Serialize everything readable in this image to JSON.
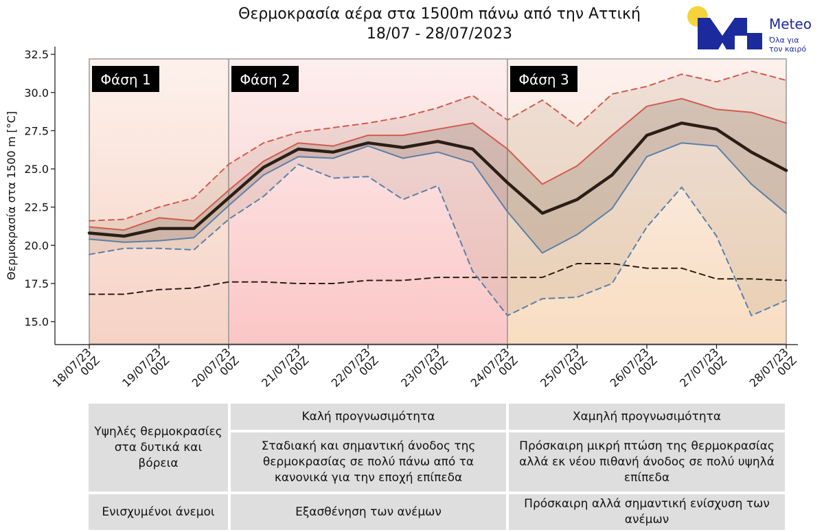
{
  "chart_data": {
    "type": "line",
    "title": "Θερμοκρασία αέρα στα 1500m πάνω από την Αττική",
    "subtitle": "18/07 - 28/07/2023",
    "ylabel": "Θερμοκρασία στα 1500 m [°C]",
    "xlabel": "",
    "ylim": [
      13.5,
      33.0
    ],
    "yticks": [
      "15.0",
      "17.5",
      "20.0",
      "22.5",
      "25.0",
      "27.5",
      "30.0",
      "32.5"
    ],
    "grid": false,
    "x": [
      0,
      0.5,
      1,
      1.5,
      2,
      2.5,
      3,
      3.5,
      4,
      4.5,
      5,
      5.5,
      6,
      6.5,
      7,
      7.5,
      8,
      8.5,
      9,
      9.5,
      10
    ],
    "xtick_labels": [
      {
        "date": "18/07/23",
        "hour": "00Z"
      },
      {
        "date": "19/07/23",
        "hour": "00Z"
      },
      {
        "date": "20/07/23",
        "hour": "00Z"
      },
      {
        "date": "21/07/23",
        "hour": "00Z"
      },
      {
        "date": "22/07/23",
        "hour": "00Z"
      },
      {
        "date": "23/07/23",
        "hour": "00Z"
      },
      {
        "date": "24/07/23",
        "hour": "00Z"
      },
      {
        "date": "25/07/23",
        "hour": "00Z"
      },
      {
        "date": "26/07/23",
        "hour": "00Z"
      },
      {
        "date": "27/07/23",
        "hour": "00Z"
      },
      {
        "date": "28/07/23",
        "hour": "00Z"
      }
    ],
    "series": [
      {
        "key": "max",
        "style": "dashed",
        "color": "#d25a4e",
        "values": [
          21.6,
          21.7,
          22.5,
          23.1,
          25.3,
          26.7,
          27.4,
          27.7,
          28.0,
          28.4,
          29.0,
          29.8,
          28.2,
          29.5,
          27.8,
          29.9,
          30.4,
          31.2,
          30.7,
          31.4,
          30.8
        ]
      },
      {
        "key": "p75",
        "style": "solid",
        "color": "#d25a4e",
        "values": [
          21.2,
          21.0,
          21.8,
          21.6,
          23.6,
          25.5,
          26.7,
          26.5,
          27.2,
          27.2,
          27.6,
          28.0,
          26.3,
          24.0,
          25.2,
          27.2,
          29.1,
          29.6,
          28.9,
          28.7,
          28.0
        ]
      },
      {
        "key": "mean",
        "style": "solid",
        "color": "#2b1e16",
        "values": [
          20.8,
          20.6,
          21.1,
          21.1,
          23.1,
          25.1,
          26.3,
          26.1,
          26.7,
          26.4,
          26.8,
          26.3,
          24.1,
          22.1,
          23.0,
          24.6,
          27.2,
          28.0,
          27.6,
          26.1,
          24.9
        ]
      },
      {
        "key": "p25",
        "style": "solid",
        "color": "#5b7fa8",
        "values": [
          20.4,
          20.2,
          20.3,
          20.5,
          22.6,
          24.6,
          25.8,
          25.7,
          26.5,
          25.7,
          26.1,
          25.4,
          22.2,
          19.5,
          20.7,
          22.4,
          25.8,
          26.7,
          26.5,
          24.0,
          22.1
        ]
      },
      {
        "key": "min",
        "style": "dashed",
        "color": "#5b7fa8",
        "values": [
          19.4,
          19.8,
          19.8,
          19.7,
          21.7,
          23.2,
          25.3,
          24.4,
          24.5,
          23.0,
          23.9,
          18.3,
          15.4,
          16.5,
          16.6,
          17.5,
          21.2,
          23.8,
          20.6,
          15.4,
          16.4
        ]
      },
      {
        "key": "climatology",
        "style": "dashed",
        "color": "#2b1e16",
        "values": [
          16.8,
          16.8,
          17.1,
          17.2,
          17.6,
          17.6,
          17.5,
          17.5,
          17.7,
          17.7,
          17.9,
          17.9,
          17.9,
          17.9,
          18.8,
          18.8,
          18.5,
          18.5,
          17.8,
          17.8,
          17.7
        ]
      }
    ],
    "phases": [
      {
        "label": "Φάση 1",
        "x_start": 0,
        "x_end": 2,
        "color": "#f9e0d8"
      },
      {
        "label": "Φάση 2",
        "x_start": 2,
        "x_end": 6,
        "color": "#fbd0d0"
      },
      {
        "label": "Φάση 3",
        "x_start": 6,
        "x_end": 10,
        "color": "#fbe8d4"
      }
    ]
  },
  "logo": {
    "name": "Meteo",
    "tagline_1": "Όλα για",
    "tagline_2": "τον καιρό",
    "sun_color": "#f5d33a",
    "brand_color": "#1b2a9c"
  },
  "table": {
    "row1": {
      "col1": "Υψηλές θερμοκρασίες στα δυτικά και βόρεια",
      "col2": "Καλή προγνωσιμότητα",
      "col3": "Χαμηλή προγνωσιμότητα"
    },
    "row2": {
      "col2": "Σταδιακή και σημαντική άνοδος της θερμοκρασίας σε πολύ πάνω από τα κανονικά για την εποχή επίπεδα",
      "col3": "Πρόσκαιρη μικρή πτώση της θερμοκρασίας αλλά εκ νέου πιθανή άνοδος σε πολύ υψηλά επίπεδα"
    },
    "row3": {
      "col1": "Ενισχυμένοι άνεμοι",
      "col2": "Εξασθένηση των ανέμων",
      "col3": "Πρόσκαιρη αλλά σημαντική ενίσχυση των ανέμων"
    }
  }
}
